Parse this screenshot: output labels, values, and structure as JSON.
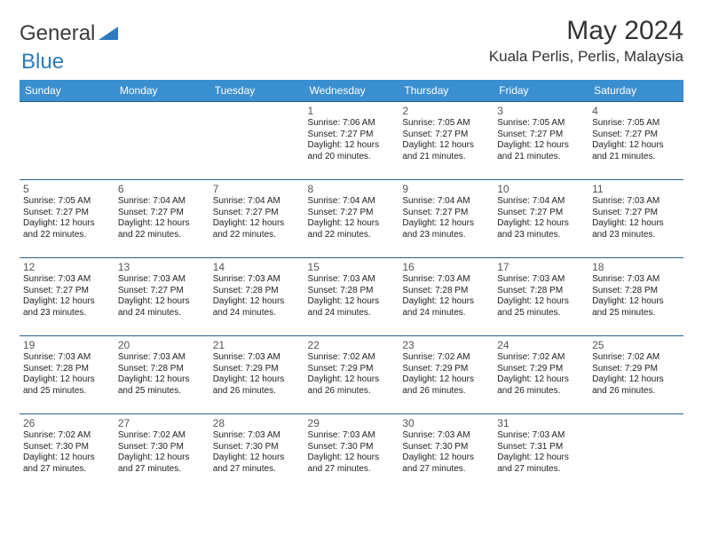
{
  "brand": {
    "part1": "General",
    "part2": "Blue"
  },
  "header": {
    "title": "May 2024",
    "location": "Kuala Perlis, Perlis, Malaysia"
  },
  "colors": {
    "header_bg": "#3a8fd0",
    "header_text": "#ffffff",
    "row_border": "#2f5f88",
    "brand_blue": "#2b7bbd",
    "text": "#333333",
    "background": "#ffffff"
  },
  "dayNames": [
    "Sunday",
    "Monday",
    "Tuesday",
    "Wednesday",
    "Thursday",
    "Friday",
    "Saturday"
  ],
  "calendar": {
    "startOffset": 3,
    "days": [
      {
        "n": 1,
        "sunrise": "7:06 AM",
        "sunset": "7:27 PM",
        "daylight": "12 hours and 20 minutes."
      },
      {
        "n": 2,
        "sunrise": "7:05 AM",
        "sunset": "7:27 PM",
        "daylight": "12 hours and 21 minutes."
      },
      {
        "n": 3,
        "sunrise": "7:05 AM",
        "sunset": "7:27 PM",
        "daylight": "12 hours and 21 minutes."
      },
      {
        "n": 4,
        "sunrise": "7:05 AM",
        "sunset": "7:27 PM",
        "daylight": "12 hours and 21 minutes."
      },
      {
        "n": 5,
        "sunrise": "7:05 AM",
        "sunset": "7:27 PM",
        "daylight": "12 hours and 22 minutes."
      },
      {
        "n": 6,
        "sunrise": "7:04 AM",
        "sunset": "7:27 PM",
        "daylight": "12 hours and 22 minutes."
      },
      {
        "n": 7,
        "sunrise": "7:04 AM",
        "sunset": "7:27 PM",
        "daylight": "12 hours and 22 minutes."
      },
      {
        "n": 8,
        "sunrise": "7:04 AM",
        "sunset": "7:27 PM",
        "daylight": "12 hours and 22 minutes."
      },
      {
        "n": 9,
        "sunrise": "7:04 AM",
        "sunset": "7:27 PM",
        "daylight": "12 hours and 23 minutes."
      },
      {
        "n": 10,
        "sunrise": "7:04 AM",
        "sunset": "7:27 PM",
        "daylight": "12 hours and 23 minutes."
      },
      {
        "n": 11,
        "sunrise": "7:03 AM",
        "sunset": "7:27 PM",
        "daylight": "12 hours and 23 minutes."
      },
      {
        "n": 12,
        "sunrise": "7:03 AM",
        "sunset": "7:27 PM",
        "daylight": "12 hours and 23 minutes."
      },
      {
        "n": 13,
        "sunrise": "7:03 AM",
        "sunset": "7:27 PM",
        "daylight": "12 hours and 24 minutes."
      },
      {
        "n": 14,
        "sunrise": "7:03 AM",
        "sunset": "7:28 PM",
        "daylight": "12 hours and 24 minutes."
      },
      {
        "n": 15,
        "sunrise": "7:03 AM",
        "sunset": "7:28 PM",
        "daylight": "12 hours and 24 minutes."
      },
      {
        "n": 16,
        "sunrise": "7:03 AM",
        "sunset": "7:28 PM",
        "daylight": "12 hours and 24 minutes."
      },
      {
        "n": 17,
        "sunrise": "7:03 AM",
        "sunset": "7:28 PM",
        "daylight": "12 hours and 25 minutes."
      },
      {
        "n": 18,
        "sunrise": "7:03 AM",
        "sunset": "7:28 PM",
        "daylight": "12 hours and 25 minutes."
      },
      {
        "n": 19,
        "sunrise": "7:03 AM",
        "sunset": "7:28 PM",
        "daylight": "12 hours and 25 minutes."
      },
      {
        "n": 20,
        "sunrise": "7:03 AM",
        "sunset": "7:28 PM",
        "daylight": "12 hours and 25 minutes."
      },
      {
        "n": 21,
        "sunrise": "7:03 AM",
        "sunset": "7:29 PM",
        "daylight": "12 hours and 26 minutes."
      },
      {
        "n": 22,
        "sunrise": "7:02 AM",
        "sunset": "7:29 PM",
        "daylight": "12 hours and 26 minutes."
      },
      {
        "n": 23,
        "sunrise": "7:02 AM",
        "sunset": "7:29 PM",
        "daylight": "12 hours and 26 minutes."
      },
      {
        "n": 24,
        "sunrise": "7:02 AM",
        "sunset": "7:29 PM",
        "daylight": "12 hours and 26 minutes."
      },
      {
        "n": 25,
        "sunrise": "7:02 AM",
        "sunset": "7:29 PM",
        "daylight": "12 hours and 26 minutes."
      },
      {
        "n": 26,
        "sunrise": "7:02 AM",
        "sunset": "7:30 PM",
        "daylight": "12 hours and 27 minutes."
      },
      {
        "n": 27,
        "sunrise": "7:02 AM",
        "sunset": "7:30 PM",
        "daylight": "12 hours and 27 minutes."
      },
      {
        "n": 28,
        "sunrise": "7:03 AM",
        "sunset": "7:30 PM",
        "daylight": "12 hours and 27 minutes."
      },
      {
        "n": 29,
        "sunrise": "7:03 AM",
        "sunset": "7:30 PM",
        "daylight": "12 hours and 27 minutes."
      },
      {
        "n": 30,
        "sunrise": "7:03 AM",
        "sunset": "7:30 PM",
        "daylight": "12 hours and 27 minutes."
      },
      {
        "n": 31,
        "sunrise": "7:03 AM",
        "sunset": "7:31 PM",
        "daylight": "12 hours and 27 minutes."
      }
    ]
  },
  "labels": {
    "sunrise": "Sunrise:",
    "sunset": "Sunset:",
    "daylight": "Daylight:"
  }
}
